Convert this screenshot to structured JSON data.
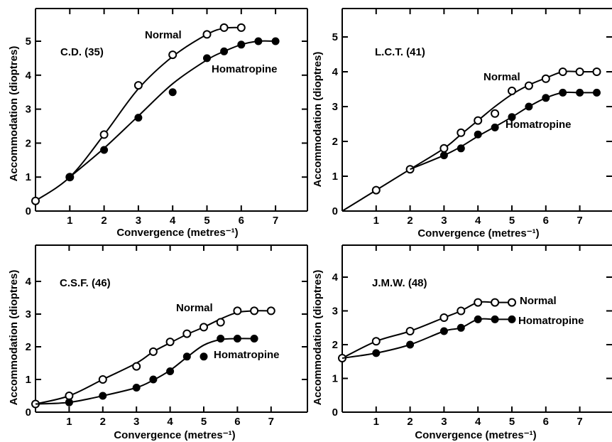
{
  "chart_data": [
    {
      "type": "line",
      "panel_label": "C.D. (35)",
      "xlabel": "Convergence (metres⁻¹)",
      "ylabel": "Accommodation (dioptres)",
      "xlim": [
        0,
        7.9
      ],
      "ylim": [
        0,
        5.9
      ],
      "xticks": [
        "1",
        "2",
        "3",
        "4",
        "5",
        "6",
        "7"
      ],
      "yticks": [
        "0",
        "1",
        "2",
        "3",
        "4",
        "5"
      ],
      "series": [
        {
          "name": "Normal",
          "marker": "open",
          "points": [
            [
              0,
              0.3
            ],
            [
              1,
              1.0
            ],
            [
              2,
              2.25
            ],
            [
              3,
              3.7
            ],
            [
              4,
              4.6
            ],
            [
              5,
              5.2
            ],
            [
              5.5,
              5.4
            ],
            [
              6,
              5.4
            ]
          ],
          "curve": [
            [
              0,
              0.3
            ],
            [
              1,
              1.0
            ],
            [
              2,
              2.25
            ],
            [
              3,
              3.6
            ],
            [
              4,
              4.55
            ],
            [
              5,
              5.2
            ],
            [
              5.5,
              5.38
            ],
            [
              6,
              5.4
            ]
          ]
        },
        {
          "name": "Homatropine",
          "marker": "filled",
          "points": [
            [
              1,
              1.0
            ],
            [
              2,
              1.8
            ],
            [
              3,
              2.75
            ],
            [
              4,
              3.5
            ],
            [
              5,
              4.5
            ],
            [
              5.5,
              4.7
            ],
            [
              6,
              4.9
            ],
            [
              6.5,
              5.0
            ],
            [
              7,
              5.0
            ]
          ],
          "curve": [
            [
              1,
              1.0
            ],
            [
              2,
              1.85
            ],
            [
              3,
              2.8
            ],
            [
              4,
              3.75
            ],
            [
              5,
              4.45
            ],
            [
              5.5,
              4.7
            ],
            [
              6,
              4.9
            ],
            [
              6.5,
              5.0
            ],
            [
              7,
              5.0
            ]
          ]
        }
      ]
    },
    {
      "type": "line",
      "panel_label": "L.C.T. (41)",
      "xlabel": "Convergence (metres⁻¹)",
      "ylabel": "Accommodation (dioptres)",
      "xlim": [
        0,
        7.9
      ],
      "ylim": [
        0,
        5.9
      ],
      "xticks": [
        "1",
        "2",
        "3",
        "4",
        "5",
        "6",
        "7"
      ],
      "yticks": [
        "0",
        "1",
        "2",
        "3",
        "4",
        "5"
      ],
      "series": [
        {
          "name": "Normal",
          "marker": "open",
          "points": [
            [
              1,
              0.6
            ],
            [
              2,
              1.2
            ],
            [
              3,
              1.8
            ],
            [
              3.5,
              2.25
            ],
            [
              4,
              2.6
            ],
            [
              4.5,
              2.8
            ],
            [
              5,
              3.45
            ],
            [
              5.5,
              3.6
            ],
            [
              6,
              3.8
            ],
            [
              6.5,
              4.0
            ],
            [
              7,
              4.0
            ],
            [
              7.5,
              4.0
            ]
          ],
          "curve": [
            [
              0,
              0
            ],
            [
              1,
              0.6
            ],
            [
              2,
              1.2
            ],
            [
              3,
              1.8
            ],
            [
              3.5,
              2.2
            ],
            [
              4,
              2.6
            ],
            [
              4.5,
              3.0
            ],
            [
              5,
              3.35
            ],
            [
              5.5,
              3.62
            ],
            [
              6,
              3.82
            ],
            [
              6.5,
              4.0
            ],
            [
              7,
              4.0
            ],
            [
              7.5,
              4.0
            ]
          ]
        },
        {
          "name": "Homatropine",
          "marker": "filled",
          "points": [
            [
              3,
              1.6
            ],
            [
              3.5,
              1.8
            ],
            [
              4,
              2.2
            ],
            [
              4.5,
              2.4
            ],
            [
              5,
              2.7
            ],
            [
              5.5,
              3.0
            ],
            [
              6,
              3.25
            ],
            [
              6.5,
              3.4
            ],
            [
              7,
              3.4
            ],
            [
              7.5,
              3.4
            ]
          ],
          "curve": [
            [
              2,
              1.2
            ],
            [
              3,
              1.6
            ],
            [
              3.5,
              1.85
            ],
            [
              4,
              2.15
            ],
            [
              4.5,
              2.42
            ],
            [
              5,
              2.7
            ],
            [
              5.5,
              3.0
            ],
            [
              6,
              3.25
            ],
            [
              6.5,
              3.4
            ],
            [
              7,
              3.4
            ],
            [
              7.5,
              3.4
            ]
          ]
        }
      ]
    },
    {
      "type": "line",
      "panel_label": "C.S.F. (46)",
      "xlabel": "Convergence (metres⁻¹)",
      "ylabel": "Accommodation (dioptres)",
      "xlim": [
        0,
        7.9
      ],
      "ylim": [
        0,
        4.9
      ],
      "xticks": [
        "1",
        "2",
        "3",
        "4",
        "5",
        "6",
        "7"
      ],
      "yticks": [
        "0",
        "1",
        "2",
        "3",
        "4"
      ],
      "series": [
        {
          "name": "Normal",
          "marker": "open",
          "points": [
            [
              0,
              0.25
            ],
            [
              1,
              0.5
            ],
            [
              2,
              1.0
            ],
            [
              3,
              1.4
            ],
            [
              3.5,
              1.85
            ],
            [
              4,
              2.15
            ],
            [
              4.5,
              2.4
            ],
            [
              5,
              2.6
            ],
            [
              5.5,
              2.75
            ],
            [
              6,
              3.1
            ],
            [
              6.5,
              3.1
            ],
            [
              7,
              3.1
            ]
          ],
          "curve": [
            [
              0,
              0.25
            ],
            [
              1,
              0.5
            ],
            [
              2,
              1.0
            ],
            [
              3,
              1.5
            ],
            [
              3.5,
              1.85
            ],
            [
              4,
              2.12
            ],
            [
              4.5,
              2.38
            ],
            [
              5,
              2.6
            ],
            [
              5.5,
              2.85
            ],
            [
              6,
              3.05
            ],
            [
              6.5,
              3.1
            ],
            [
              7,
              3.1
            ]
          ]
        },
        {
          "name": "Homatropine",
          "marker": "filled",
          "points": [
            [
              1,
              0.3
            ],
            [
              2,
              0.5
            ],
            [
              3,
              0.75
            ],
            [
              3.5,
              1.0
            ],
            [
              4,
              1.25
            ],
            [
              4.5,
              1.7
            ],
            [
              5,
              1.7
            ],
            [
              5.5,
              2.25
            ],
            [
              6,
              2.25
            ],
            [
              6.5,
              2.25
            ]
          ],
          "curve": [
            [
              0,
              0.25
            ],
            [
              1,
              0.3
            ],
            [
              2,
              0.5
            ],
            [
              3,
              0.75
            ],
            [
              3.5,
              0.98
            ],
            [
              4,
              1.28
            ],
            [
              4.5,
              1.68
            ],
            [
              5,
              2.05
            ],
            [
              5.5,
              2.22
            ],
            [
              6,
              2.25
            ],
            [
              6.5,
              2.25
            ]
          ]
        }
      ]
    },
    {
      "type": "line",
      "panel_label": "J.M.W. (48)",
      "xlabel": "Convergence (metres⁻¹)",
      "ylabel": "Accommodation (dioptres)",
      "xlim": [
        0,
        7.9
      ],
      "ylim": [
        0,
        4.9
      ],
      "xticks": [
        "1",
        "2",
        "3",
        "4",
        "5",
        "6",
        "7"
      ],
      "yticks": [
        "0",
        "1",
        "2",
        "3",
        "4"
      ],
      "series": [
        {
          "name": "Normal",
          "marker": "open",
          "points": [
            [
              0,
              1.6
            ],
            [
              1,
              2.1
            ],
            [
              2,
              2.4
            ],
            [
              3,
              2.8
            ],
            [
              3.5,
              3.0
            ],
            [
              4,
              3.25
            ],
            [
              4.5,
              3.25
            ],
            [
              5,
              3.25
            ]
          ],
          "curve": [
            [
              0,
              1.6
            ],
            [
              1,
              2.1
            ],
            [
              2,
              2.4
            ],
            [
              3,
              2.8
            ],
            [
              3.5,
              3.0
            ],
            [
              4,
              3.25
            ],
            [
              4.5,
              3.25
            ],
            [
              5,
              3.25
            ]
          ]
        },
        {
          "name": "Homatropine",
          "marker": "filled",
          "points": [
            [
              1,
              1.75
            ],
            [
              2,
              2.0
            ],
            [
              3,
              2.4
            ],
            [
              3.5,
              2.5
            ],
            [
              4,
              2.75
            ],
            [
              4.5,
              2.75
            ],
            [
              5,
              2.75
            ]
          ],
          "curve": [
            [
              0,
              1.6
            ],
            [
              1,
              1.75
            ],
            [
              2,
              2.0
            ],
            [
              3,
              2.4
            ],
            [
              3.5,
              2.5
            ],
            [
              4,
              2.75
            ],
            [
              4.5,
              2.75
            ],
            [
              5,
              2.75
            ]
          ]
        }
      ]
    }
  ]
}
